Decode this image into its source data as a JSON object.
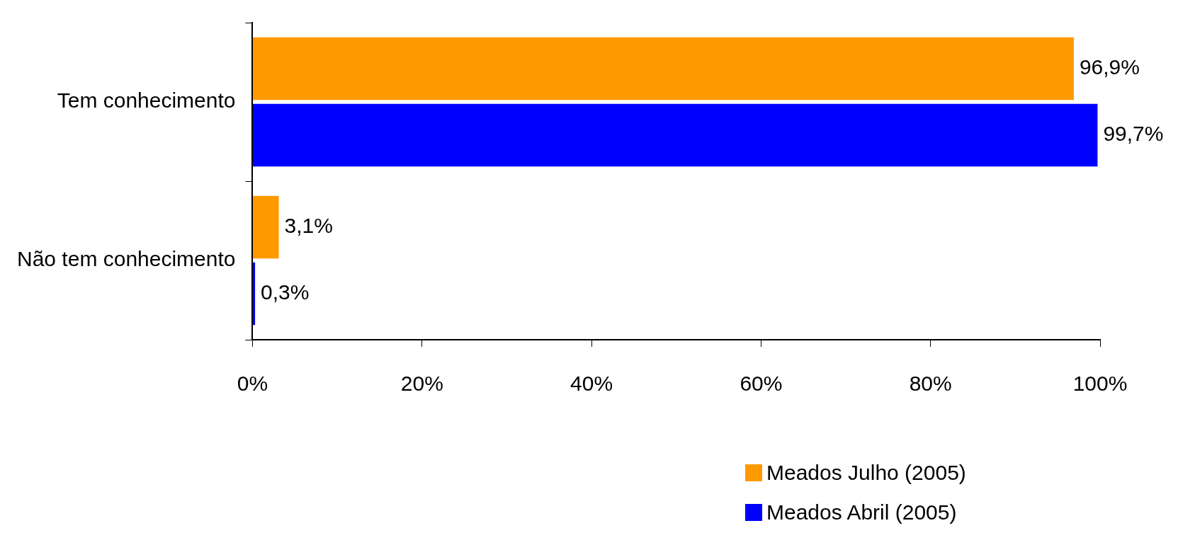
{
  "chart_data": {
    "type": "bar",
    "orientation": "horizontal",
    "categories": [
      "Tem conhecimento",
      "Não tem conhecimento"
    ],
    "series": [
      {
        "name": "Meados Julho (2005)",
        "color": "#ff9900",
        "values": [
          96.9,
          3.1
        ],
        "value_labels": [
          "96,9%",
          "3,1%"
        ]
      },
      {
        "name": "Meados Abril (2005)",
        "color": "#0000ff",
        "values": [
          99.7,
          0.3
        ],
        "value_labels": [
          "99,7%",
          "0,3%"
        ]
      }
    ],
    "xlim": [
      0,
      100
    ],
    "xticks": [
      {
        "value": 0,
        "label": "0%"
      },
      {
        "value": 20,
        "label": "20%"
      },
      {
        "value": 40,
        "label": "40%"
      },
      {
        "value": 60,
        "label": "60%"
      },
      {
        "value": 80,
        "label": "80%"
      },
      {
        "value": 100,
        "label": "100%"
      }
    ],
    "grid": false,
    "legend": "bottom right"
  }
}
